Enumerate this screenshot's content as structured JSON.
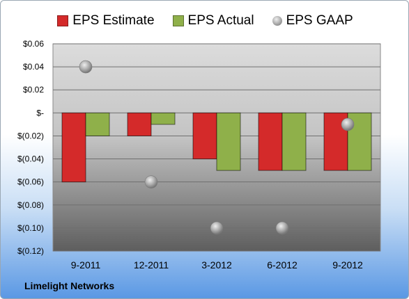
{
  "chart_data": {
    "type": "bar",
    "categories": [
      "9-2011",
      "12-2011",
      "3-2012",
      "6-2012",
      "9-2012"
    ],
    "series": [
      {
        "name": "EPS Estimate",
        "kind": "bar",
        "color": "#d42a2a",
        "values": [
          -0.06,
          -0.02,
          -0.04,
          -0.05,
          -0.05
        ]
      },
      {
        "name": "EPS Actual",
        "kind": "bar",
        "color": "#8fb04a",
        "values": [
          -0.02,
          -0.01,
          -0.05,
          -0.05,
          -0.05
        ]
      },
      {
        "name": "EPS GAAP",
        "kind": "scatter",
        "color": "#a8a8a8",
        "values": [
          0.04,
          -0.06,
          -0.1,
          -0.1,
          -0.01
        ]
      }
    ],
    "yticks": [
      "$0.06",
      "$0.04",
      "$0.02",
      "$-",
      "$(0.02)",
      "$(0.04)",
      "$(0.06)",
      "$(0.08)",
      "$(0.10)",
      "$(0.12)"
    ],
    "ylim": [
      -0.12,
      0.06
    ],
    "grid": true,
    "legend": "top"
  },
  "footer": {
    "company": "Limelight Networks"
  }
}
